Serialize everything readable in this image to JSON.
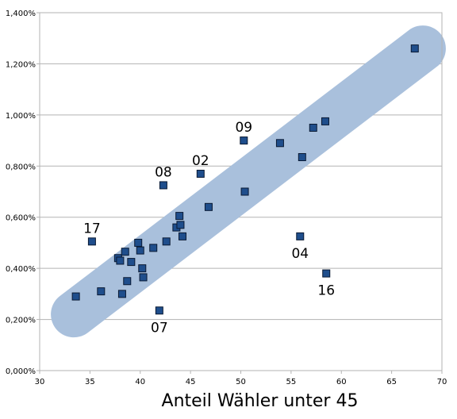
{
  "chart_data": {
    "type": "scatter",
    "title": "",
    "xlabel": "Anteil Wähler unter 45",
    "ylabel": "",
    "xlim": [
      30,
      70
    ],
    "ylim": [
      0,
      1.4
    ],
    "x_ticks": [
      "30",
      "35",
      "40",
      "45",
      "50",
      "55",
      "60",
      "65",
      "70"
    ],
    "y_ticks": [
      "0,000%",
      "0,200%",
      "0,400%",
      "0,600%",
      "0,800%",
      "1,000%",
      "1,200%",
      "1,400%"
    ],
    "grid": "horizontal",
    "marker_color": "#1f4e8c",
    "band_color": "#a9c0dc",
    "trend_band": {
      "x": [
        33.4,
        68.1
      ],
      "y": [
        0.22,
        1.26
      ]
    },
    "points": [
      {
        "x": 33.6,
        "y": 0.29
      },
      {
        "x": 35.2,
        "y": 0.505
      },
      {
        "x": 36.1,
        "y": 0.31
      },
      {
        "x": 37.8,
        "y": 0.44
      },
      {
        "x": 38.0,
        "y": 0.43
      },
      {
        "x": 38.2,
        "y": 0.3
      },
      {
        "x": 38.5,
        "y": 0.465
      },
      {
        "x": 38.7,
        "y": 0.35
      },
      {
        "x": 39.1,
        "y": 0.425
      },
      {
        "x": 39.8,
        "y": 0.5
      },
      {
        "x": 40.0,
        "y": 0.47
      },
      {
        "x": 40.2,
        "y": 0.4
      },
      {
        "x": 40.3,
        "y": 0.365
      },
      {
        "x": 41.3,
        "y": 0.48
      },
      {
        "x": 41.9,
        "y": 0.235
      },
      {
        "x": 42.3,
        "y": 0.725
      },
      {
        "x": 42.6,
        "y": 0.505
      },
      {
        "x": 43.6,
        "y": 0.56
      },
      {
        "x": 43.9,
        "y": 0.605
      },
      {
        "x": 44.0,
        "y": 0.57
      },
      {
        "x": 44.2,
        "y": 0.525
      },
      {
        "x": 46.0,
        "y": 0.77
      },
      {
        "x": 46.8,
        "y": 0.64
      },
      {
        "x": 50.3,
        "y": 0.9
      },
      {
        "x": 50.4,
        "y": 0.7
      },
      {
        "x": 53.9,
        "y": 0.89
      },
      {
        "x": 55.9,
        "y": 0.525
      },
      {
        "x": 56.1,
        "y": 0.835
      },
      {
        "x": 57.2,
        "y": 0.95
      },
      {
        "x": 58.4,
        "y": 0.975
      },
      {
        "x": 58.5,
        "y": 0.38
      },
      {
        "x": 67.3,
        "y": 1.26
      }
    ],
    "annotations": [
      {
        "text": "17",
        "x": 35.2,
        "y": 0.505,
        "pos": "above"
      },
      {
        "text": "08",
        "x": 42.3,
        "y": 0.725,
        "pos": "above"
      },
      {
        "text": "02",
        "x": 46.0,
        "y": 0.77,
        "pos": "above"
      },
      {
        "text": "09",
        "x": 50.3,
        "y": 0.9,
        "pos": "above"
      },
      {
        "text": "04",
        "x": 55.9,
        "y": 0.525,
        "pos": "below"
      },
      {
        "text": "16",
        "x": 58.5,
        "y": 0.38,
        "pos": "below"
      },
      {
        "text": "07",
        "x": 41.9,
        "y": 0.235,
        "pos": "below"
      }
    ]
  }
}
